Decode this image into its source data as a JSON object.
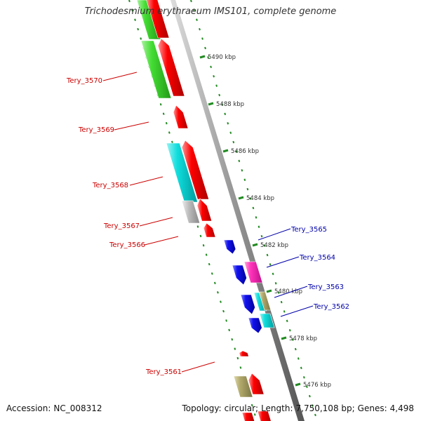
{
  "title": "Trichodesmium erythraeum IMS101, complete genome",
  "footer": {
    "accession_label": "Accession:",
    "accession": "NC_008312",
    "topology_label": "Topology:",
    "topology": "circular;",
    "length_label": "Length:",
    "length": "7,750,108 bp;",
    "genes_label": "Genes:",
    "genes": "4,498"
  },
  "ticks": [
    "5476 kbp",
    "5478 kbp",
    "5480 kbp",
    "5482 kbp",
    "5484 kbp",
    "5486 kbp",
    "5488 kbp",
    "5490 kbp"
  ],
  "genes_left": [
    "Tery_3570",
    "Tery_3569",
    "Tery_3568",
    "Tery_3567",
    "Tery_3566",
    "Tery_3561"
  ],
  "genes_right": [
    "Tery_3565",
    "Tery_3564",
    "Tery_3563",
    "Tery_3562"
  ],
  "colors": {
    "backbone": "#888888",
    "tick": "#228b22",
    "red": "#ff0000",
    "green": "#44dd33",
    "cyan": "#11dddd",
    "gray": "#bbbbbb",
    "blue": "#1111ee",
    "pink": "#ff33bb",
    "olive": "#b0a86a",
    "label_left": "#cc0000",
    "label_right": "#0000aa"
  }
}
